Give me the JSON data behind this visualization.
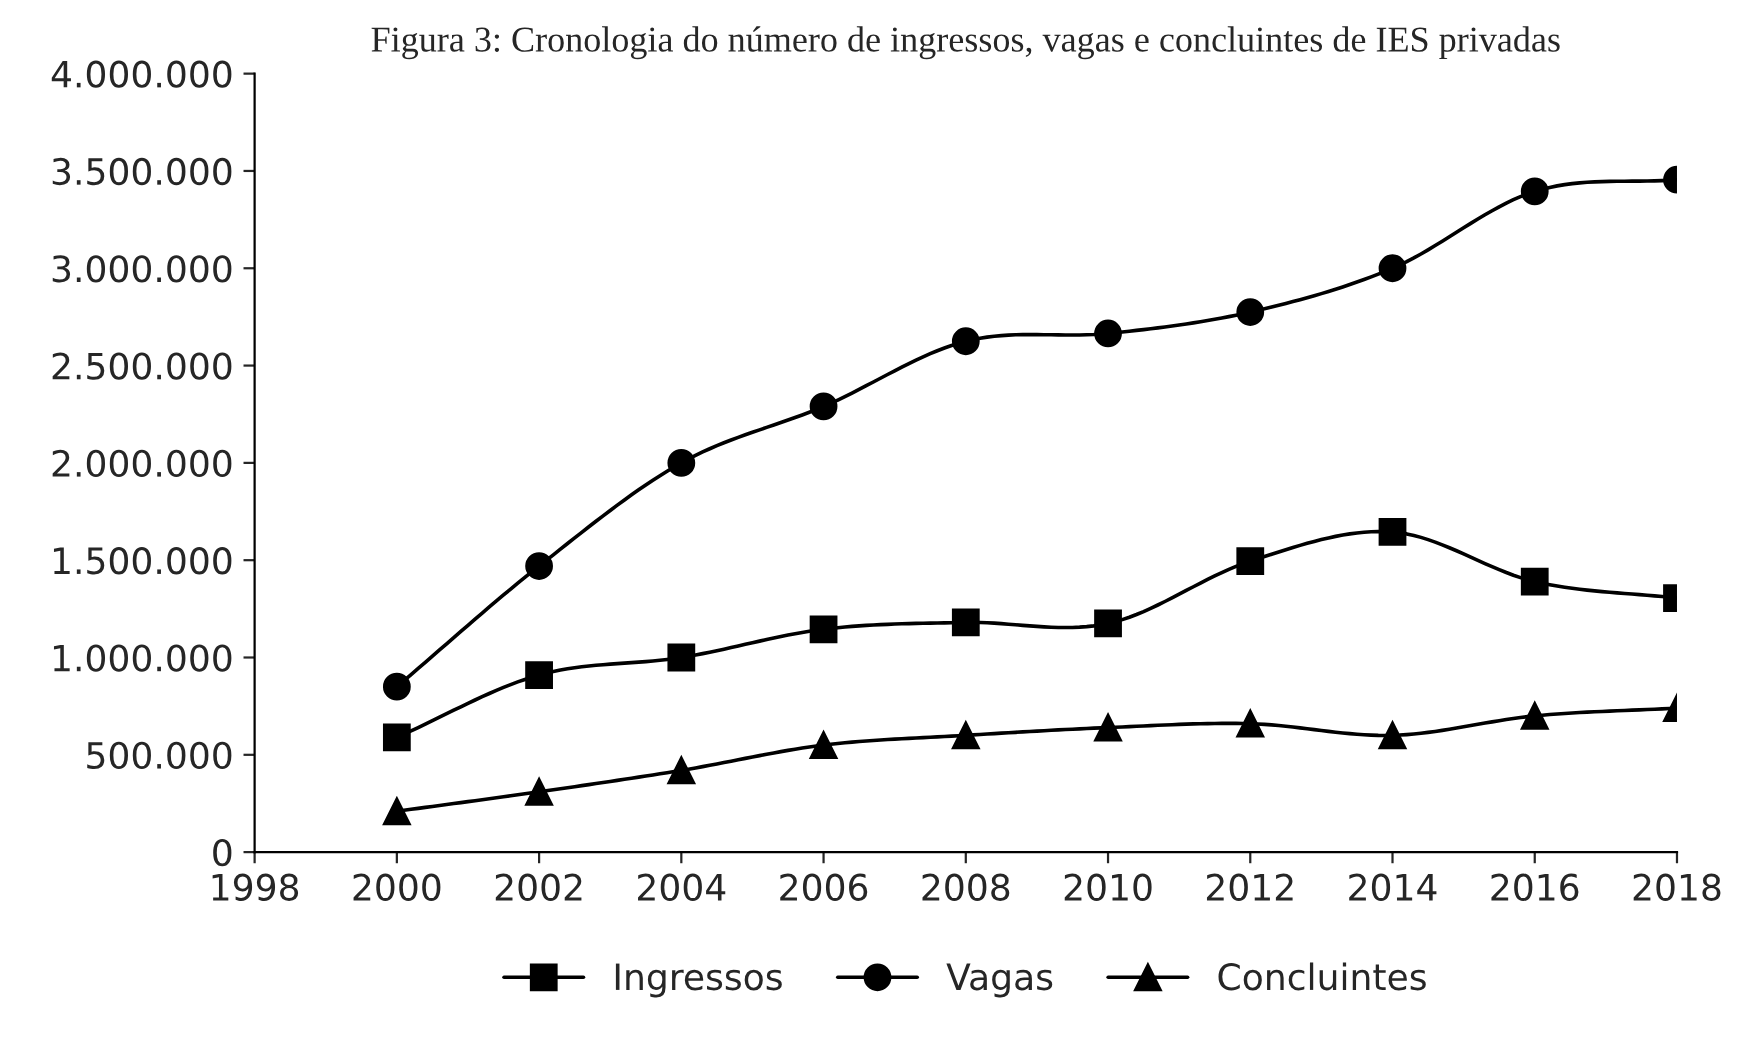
{
  "chart_data": {
    "type": "line",
    "title": "Figura 3: Cronologia do número de ingressos, vagas e concluintes de IES privadas",
    "x": [
      2000,
      2002,
      2004,
      2006,
      2008,
      2010,
      2012,
      2014,
      2016,
      2018
    ],
    "series": [
      {
        "name": "Ingressos",
        "color": "#000000",
        "marker": "square",
        "values": [
          590000,
          910000,
          1000000,
          1145000,
          1180000,
          1175000,
          1495000,
          1645000,
          1390000,
          1305000
        ]
      },
      {
        "name": "Vagas",
        "color": "#000000",
        "marker": "circle",
        "values": [
          850000,
          1470000,
          2000000,
          2290000,
          2625000,
          2665000,
          2775000,
          3000000,
          3395000,
          3455000
        ]
      },
      {
        "name": "Concluintes",
        "color": "#000000",
        "marker": "triangle",
        "values": [
          210000,
          310000,
          420000,
          550000,
          600000,
          640000,
          660000,
          600000,
          700000,
          740000
        ]
      }
    ],
    "xlim": [
      1998,
      2018
    ],
    "xticks": [
      1998,
      2000,
      2002,
      2004,
      2006,
      2008,
      2010,
      2012,
      2014,
      2016,
      2018
    ],
    "ylim": [
      0,
      4000000
    ],
    "yticks": [
      {
        "value": 0,
        "label": "0"
      },
      {
        "value": 500000,
        "label": "500.000"
      },
      {
        "value": 1000000,
        "label": "1.000.000"
      },
      {
        "value": 1500000,
        "label": "1.500.000"
      },
      {
        "value": 2000000,
        "label": "2.000.000"
      },
      {
        "value": 2500000,
        "label": "2.500.000"
      },
      {
        "value": 3000000,
        "label": "3.000.000"
      },
      {
        "value": 3500000,
        "label": "3.500.000"
      },
      {
        "value": 4000000,
        "label": "4.000.000"
      }
    ],
    "grid": false,
    "legend": "bottom",
    "line_style": "solid"
  }
}
